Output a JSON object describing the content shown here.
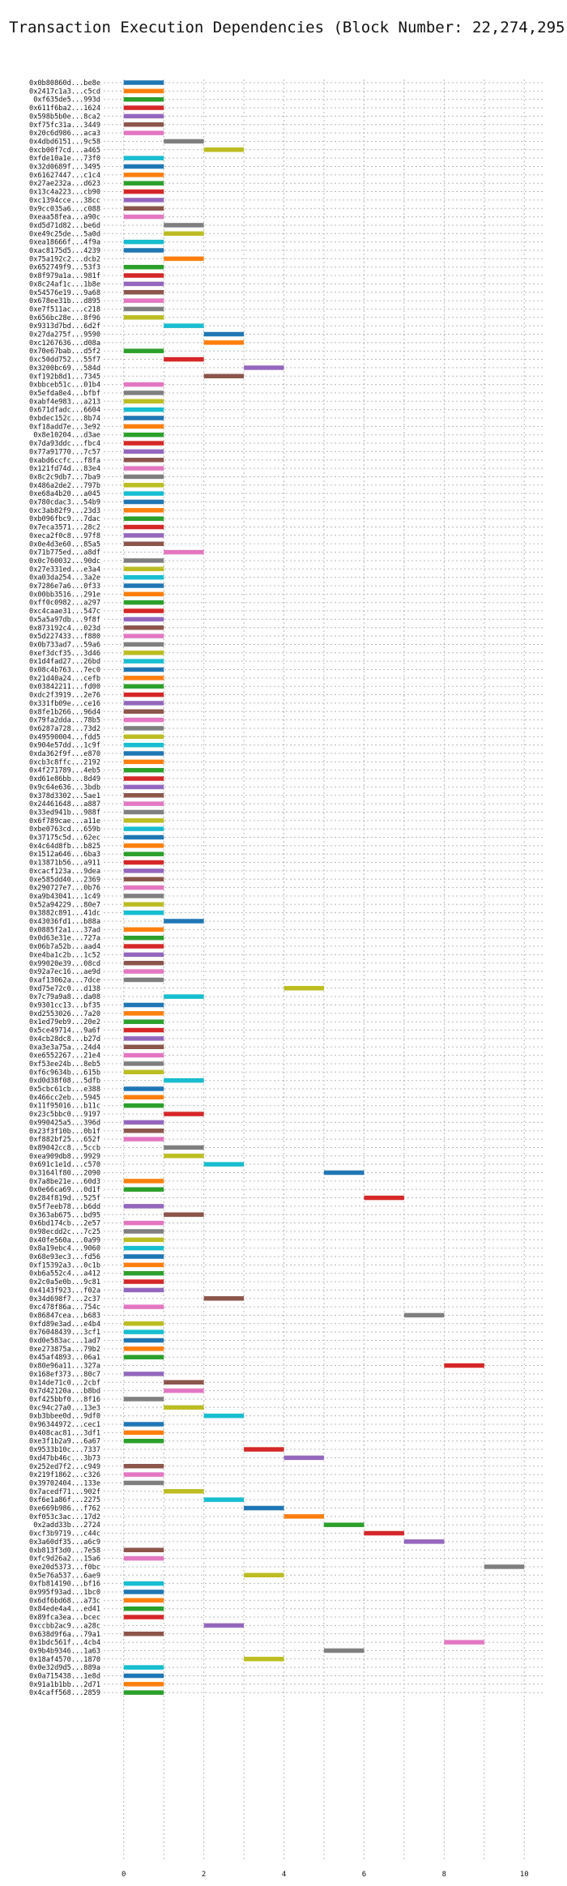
{
  "chart_data": {
    "type": "bar",
    "orientation": "horizontal-gantt",
    "title": "Transaction Execution Dependencies (Block Number: 22,274,295)",
    "xlabel": "",
    "ylabel": "",
    "xlim": [
      -0.5,
      10.5
    ],
    "xticks": [
      "0",
      "2",
      "4",
      "6",
      "8",
      "10"
    ],
    "grid": true,
    "color_cycle": [
      "#1f77b4",
      "#ff7f0e",
      "#2ca02c",
      "#d62728",
      "#9467bd",
      "#8c564b",
      "#e377c2",
      "#7f7f7f",
      "#bcbd22",
      "#17becf"
    ],
    "categories": [
      "0x0b80860d...be8e",
      "0x2417c1a3...c5cd",
      "0xf635de5...993d",
      "0x611f6ba2...1624",
      "0x598b5b0e...8ca2",
      "0xf75fc31a...3449",
      "0x20c6d986...aca3",
      "0x4dbd6151...9c58",
      "0xcb00f7cd...a465",
      "0xfde10a1e...73f0",
      "0x32d0689f...3495",
      "0x61627447...c1c4",
      "0x27ae232a...d623",
      "0x13c4a223...cb90",
      "0xc1394cce...38cc",
      "0x9cc035a6...c088",
      "0xeaa58fea...a90c",
      "0xd5d71d82...be6d",
      "0xe49c25de...5a0d",
      "0xea18666f...4f9a",
      "0xac8175d5...4239",
      "0x75a192c2...dcb2",
      "0x652749f9...53f3",
      "0x8f979a1a...981f",
      "0x8c24af1c...1b8e",
      "0x54576e19...9a68",
      "0x678ee31b...d895",
      "0xe7f511ac...c218",
      "0x656bc28e...8f96",
      "0x9313d7bd...6d2f",
      "0x27da275f...9590",
      "0xc1267636...d08a",
      "0x70e67bab...d5f2",
      "0xc50dd752...55f7",
      "0x3200bc69...584d",
      "0xf192b8d1...7345",
      "0xbbceb51c...01b4",
      "0x5efda8e4...bfbf",
      "0xabf4e983...a213",
      "0x671dfadc...6604",
      "0xbdec152c...8b74",
      "0xf18add7e...3e92",
      "0x8e10204...d3ae",
      "0x7da93ddc...fbc4",
      "0x77a91770...7c57",
      "0xabd6ccfc...f8fa",
      "0x121fd74d...83e4",
      "0x8c2c9db7...7ba9",
      "0x486a2de2...797b",
      "0xe68a4b20...a045",
      "0x780cdac3...54b9",
      "0xc3ab82f9...23d3",
      "0xb096fbc9...7dac",
      "0x7eca3571...28c2",
      "0xeca2f0c8...97f8",
      "0x0e4d3e60...85a5",
      "0x71b775ed...a8df",
      "0x0c760032...90dc",
      "0x27e331ed...e3a4",
      "0xa03da254...3a2e",
      "0x7286e7a6...0f33",
      "0x00bb3516...291e",
      "0xff0c0982...a297",
      "0xc4caae31...547c",
      "0x5a5a97db...9f8f",
      "0x873192c4...023d",
      "0x5d227433...f880",
      "0x0b733ad7...59a6",
      "0xef3dcf35...3d46",
      "0x1d4fad27...26bd",
      "0x08c4b763...7ec0",
      "0x21d40a24...cefb",
      "0x03842211...fd00",
      "0xdc2f3919...2e76",
      "0x331fb09e...ce16",
      "0x8fe1b266...96d4",
      "0x79fa2dda...78b5",
      "0x6287a728...73d2",
      "0x49590004...fdd5",
      "0x904e57dd...1c9f",
      "0xda362f9f...e870",
      "0xcb3c8ffc...2192",
      "0x4f271789...4eb5",
      "0xd61e86bb...8d49",
      "0x9c64e636...3bdb",
      "0x378d3302...5ae1",
      "0x24461648...a887",
      "0x33ed941b...988f",
      "0x6f789cae...a11e",
      "0xbe0763cd...659b",
      "0x37175c5d...62ec",
      "0x4c64d8fb...b825",
      "0x1512a646...6ba3",
      "0x13871b56...a911",
      "0xcacf123a...9dea",
      "0xe585dd40...2369",
      "0x290727e7...0b76",
      "0xa9b43041...1c49",
      "0x52a94229...80e7",
      "0x3882c891...41dc",
      "0x43036fd1...b88a",
      "0x0885f2a1...37ad",
      "0x0d63e31e...727a",
      "0x06b7a52b...aad4",
      "0xe4ba1c2b...1c52",
      "0x99020e39...08cd",
      "0x92a7ec16...ae9d",
      "0xaf13062a...7dce",
      "0xd75e72c0...d138",
      "0x7c79a9a8...da08",
      "0x9301cc13...bf35",
      "0xd2553026...7a20",
      "0x1ed79eb9...20e2",
      "0x5ce49714...9a6f",
      "0x4cb28dc8...b27d",
      "0xa3e3a75a...24d4",
      "0xe6552267...21e4",
      "0xf53ee24b...8eb5",
      "0xf6c9634b...615b",
      "0xd0d38f08...5dfb",
      "0x5cbc61cb...e388",
      "0x466cc2eb...5945",
      "0x11f95016...b11c",
      "0x23c5bbc0...9197",
      "0x990425a5...396d",
      "0x23f3f10b...0b1f",
      "0xf882bf25...652f",
      "0x89042cc8...5ccb",
      "0xea909db8...9929",
      "0x691c1e1d...c570",
      "0x3164lf80...2090",
      "0x7a8be21e...60d3",
      "0x0e66ca69...0d1f",
      "0x284f819d...525f",
      "0x5f7eeb78...b6dd",
      "0x363ab675...bd95",
      "0x6bd174cb...2e57",
      "0x98ecdd2c...7c25",
      "0x40fe560a...0a99",
      "0x8a19ebc4...9060",
      "0x68e93ec3...fd56",
      "0xf15392a3...0c1b",
      "0xb6a552c4...a412",
      "0x2c0a5e0b...9c81",
      "0x4143f923...f02a",
      "0x34d698f7...2c37",
      "0xc478f86a...754c",
      "0x86847cea...b683",
      "0xfd89e3ad...e4b4",
      "0x76048439...3cf1",
      "0xd0e583ac...1ad7",
      "0xe273875a...79b2",
      "0x45af4893...06a1",
      "0x80e96a11...327a",
      "0x168ef373...80c7",
      "0x14de71c0...2cbf",
      "0x7d42120a...b8bd",
      "0xf425bbf0...8f16",
      "0xc94c27a0...13e3",
      "0xb3bbee0d...9df0",
      "0x96344972...cec1",
      "0x408cac81...3df1",
      "0xe3f1b2a9...6a67",
      "0x9533b10c...7337",
      "0xd47bb46c...3b73",
      "0x252ed7f2...c949",
      "0x219f1862...c326",
      "0x39702404...133e",
      "0x7acedf71...902f",
      "0xf6e1a86f...2275",
      "0xe669b986...f762",
      "0xf053c3ac...17d2",
      "0x2add33b...2724",
      "0xcf3b9719...c44c",
      "0x3a60df35...a6c9",
      "0xb813f3d0...7e58",
      "0xfc9d26a2...15a6",
      "0xe20d5373...f0bc",
      "0x5e76a537...6ae9",
      "0xfb814190...bf16",
      "0x995f93ad...1bc0",
      "0x6df6bd68...a73c",
      "0x84ede4a4...ed41",
      "0x89fca3ea...bcec",
      "0xccbb2ac9...a28c",
      "0x638d9f6a...79a1",
      "0x1bdc561f...4cb4",
      "0x9b4b9346...1a63",
      "0x18af4570...1870",
      "0x0e32d9d5...889a",
      "0x0a715438...1e8d",
      "0x91a1b1bb...2d71",
      "0x4caff568...2859"
    ],
    "starts": [
      0,
      0,
      0,
      0,
      0,
      0,
      0,
      1,
      2,
      0,
      0,
      0,
      0,
      0,
      0,
      0,
      0,
      1,
      1,
      0,
      0,
      1,
      0,
      0,
      0,
      0,
      0,
      0,
      0,
      1,
      2,
      2,
      0,
      1,
      3,
      2,
      0,
      0,
      0,
      0,
      0,
      0,
      0,
      0,
      0,
      0,
      0,
      0,
      0,
      0,
      0,
      0,
      0,
      0,
      0,
      0,
      1,
      0,
      0,
      0,
      0,
      0,
      0,
      0,
      0,
      0,
      0,
      0,
      0,
      0,
      0,
      0,
      0,
      0,
      0,
      0,
      0,
      0,
      0,
      0,
      0,
      0,
      0,
      0,
      0,
      0,
      0,
      0,
      0,
      0,
      0,
      0,
      0,
      0,
      0,
      0,
      0,
      0,
      0,
      0,
      1,
      0,
      0,
      0,
      0,
      0,
      0,
      0,
      4,
      1,
      0,
      0,
      0,
      0,
      0,
      0,
      0,
      0,
      0,
      1,
      0,
      0,
      0,
      1,
      0,
      0,
      0,
      1,
      1,
      2,
      5,
      0,
      0,
      6,
      0,
      1,
      0,
      0,
      0,
      0,
      0,
      0,
      0,
      0,
      0,
      2,
      0,
      7,
      0,
      0,
      0,
      0,
      0,
      8,
      0,
      1,
      1,
      0,
      1,
      2,
      0,
      0,
      0,
      3,
      4,
      0,
      0,
      0,
      1,
      2,
      3,
      4,
      5,
      6,
      7,
      0,
      0,
      9,
      3,
      0,
      0,
      0,
      0,
      0,
      2,
      0,
      8,
      5,
      3,
      0,
      0,
      0,
      0
    ],
    "durations": "all 1 (each transaction occupies one execution slot)",
    "colors": [
      0,
      1,
      2,
      3,
      4,
      5,
      6,
      7,
      8,
      9,
      0,
      1,
      2,
      3,
      4,
      5,
      6,
      7,
      8,
      9,
      0,
      1,
      2,
      3,
      4,
      5,
      6,
      7,
      8,
      9,
      0,
      1,
      2,
      3,
      4,
      5,
      6,
      7,
      8,
      9,
      0,
      1,
      2,
      3,
      4,
      5,
      6,
      7,
      8,
      9,
      0,
      1,
      2,
      3,
      4,
      5,
      6,
      7,
      8,
      9,
      0,
      1,
      2,
      3,
      4,
      5,
      6,
      7,
      8,
      9,
      0,
      1,
      2,
      3,
      4,
      5,
      6,
      7,
      8,
      9,
      0,
      1,
      2,
      3,
      4,
      5,
      6,
      7,
      8,
      9,
      0,
      1,
      2,
      3,
      4,
      5,
      6,
      7,
      8,
      9,
      0,
      1,
      2,
      3,
      4,
      5,
      6,
      7,
      8,
      9,
      0,
      1,
      2,
      3,
      4,
      5,
      6,
      7,
      8,
      9,
      0,
      1,
      2,
      3,
      4,
      5,
      6,
      7,
      8,
      9,
      0,
      1,
      2,
      3,
      4,
      5,
      6,
      7,
      8,
      9,
      0,
      1,
      2,
      3,
      4,
      5,
      6,
      7,
      8,
      9,
      0,
      1,
      2,
      3,
      4,
      5,
      6,
      7,
      8,
      9,
      0,
      1,
      2,
      3,
      4,
      5,
      6,
      7,
      8,
      9,
      0,
      1,
      2,
      3,
      4,
      5,
      6,
      7,
      8,
      9,
      0,
      1,
      2,
      3,
      4,
      5,
      6,
      7,
      8,
      9,
      0,
      1,
      2
    ]
  }
}
